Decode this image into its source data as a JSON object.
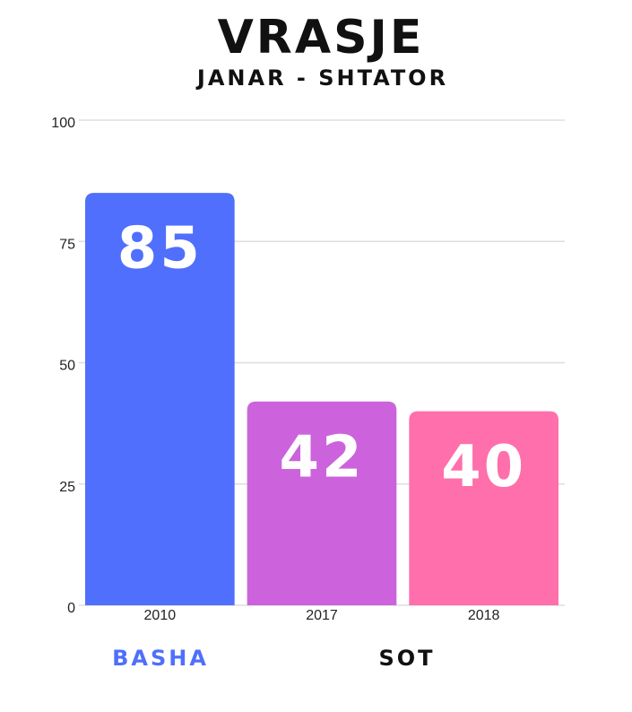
{
  "chart_data": {
    "type": "bar",
    "title": "VRASJE",
    "subtitle": "JANAR - SHTATOR",
    "categories": [
      "2010",
      "2017",
      "2018"
    ],
    "values": [
      85,
      42,
      40
    ],
    "colors": [
      "#4f6ffc",
      "#cc63dc",
      "#ff6fab"
    ],
    "ylim": [
      0,
      100
    ],
    "yticks": [
      0,
      25,
      50,
      75,
      100
    ],
    "grid": true,
    "annotations": [
      {
        "text": "BASHA",
        "color": "#4f6ffc"
      },
      {
        "text": "SOT",
        "color": "#111111"
      }
    ]
  }
}
